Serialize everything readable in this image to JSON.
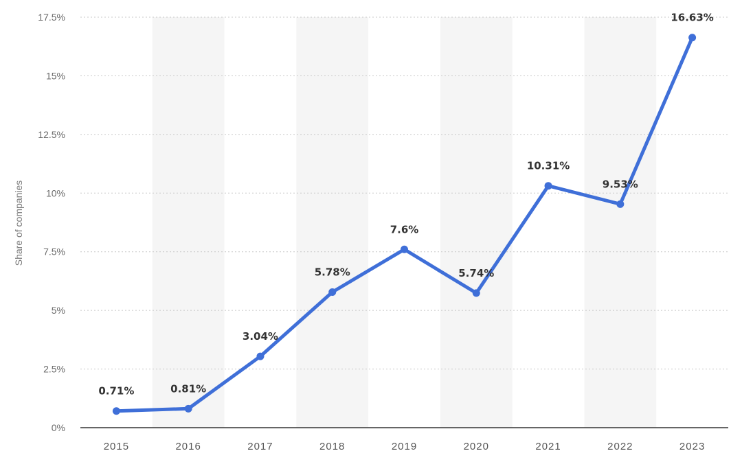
{
  "chart_data": {
    "type": "line",
    "x": [
      "2015",
      "2016",
      "2017",
      "2018",
      "2019",
      "2020",
      "2021",
      "2022",
      "2023"
    ],
    "series": [
      {
        "values": [
          0.71,
          0.81,
          3.04,
          5.78,
          7.6,
          5.74,
          10.31,
          9.53,
          16.63
        ],
        "labels": [
          "0.71%",
          "0.81%",
          "3.04%",
          "5.78%",
          "7.6%",
          "5.74%",
          "10.31%",
          "9.53%",
          "16.63%"
        ]
      }
    ],
    "ylabel": "Share of companies",
    "xlabel": "",
    "ylim": [
      0,
      17.5
    ],
    "yticks": [
      0,
      2.5,
      5,
      7.5,
      10,
      12.5,
      15,
      17.5
    ],
    "ytick_labels": [
      "0%",
      "2.5%",
      "5%",
      "7.5%",
      "10%",
      "12.5%",
      "15%",
      "17.5%"
    ],
    "grid": "horizontal dotted",
    "alternating_column_shading": true,
    "colors": {
      "line": "#3f6fd8",
      "grid": "#c8c8c8",
      "band": "#f5f5f5",
      "axis": "#333333"
    }
  }
}
